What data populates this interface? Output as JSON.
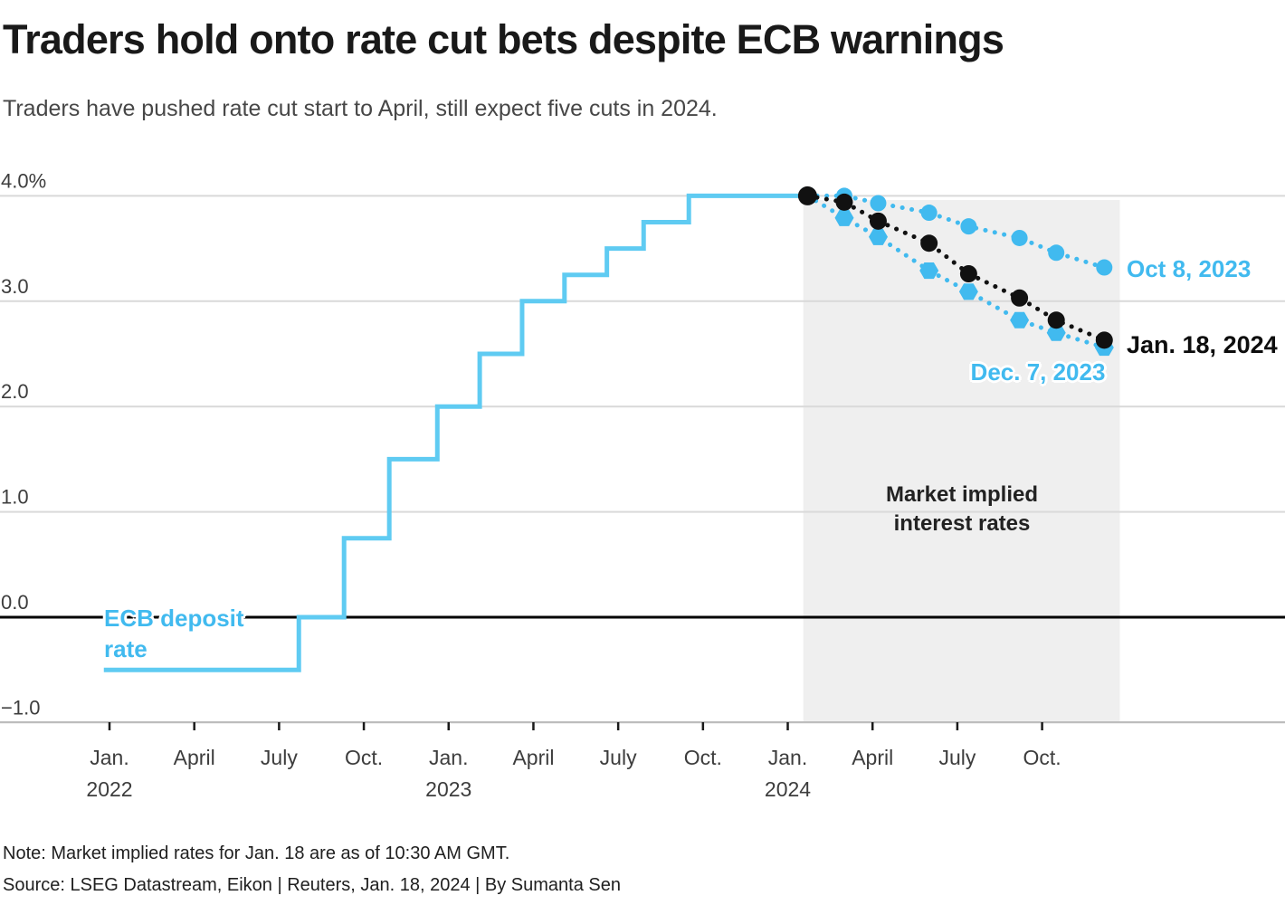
{
  "chart_data": {
    "type": "line",
    "title": "Traders hold onto rate cut bets despite ECB warnings",
    "subtitle": "Traders have pushed rate cut start to April, still expect five cuts in 2024.",
    "note": "Note: Market implied rates for Jan. 18 are as of 10:30 AM GMT.",
    "source": "Source: LSEG Datastream, Eikon | Reuters, Jan. 18, 2024 | By Sumanta Sen",
    "unit": "%",
    "colors": {
      "blue": "#41BAEF",
      "solid_blue": "#5FCBF2",
      "black": "#111111",
      "grid": "#d9d9d9",
      "axis_line": "#bdbdbd",
      "tick_mark": "#1a1a1a",
      "tick_text": "#3d3d3d",
      "shade": "#efefef"
    },
    "y_axis": {
      "label_suffix_top": "%",
      "range": [
        -1.0,
        4.0
      ],
      "grid": true,
      "ticks": [
        {
          "value": 4.0,
          "label": "4.0%"
        },
        {
          "value": 3.0,
          "label": "3.0"
        },
        {
          "value": 2.0,
          "label": "2.0"
        },
        {
          "value": 1.0,
          "label": "1.0"
        },
        {
          "value": 0.0,
          "label": "0.0"
        },
        {
          "value": -1.0,
          "label": "−1.0"
        }
      ],
      "zero_line_value": 0.0
    },
    "x_axis": {
      "unit": "months since Jan 2022",
      "range_months": [
        -0.5,
        41.5
      ],
      "ticks": [
        {
          "month": 0,
          "label": "Jan.",
          "year": "2022"
        },
        {
          "month": 3,
          "label": "April",
          "year": ""
        },
        {
          "month": 6,
          "label": "July",
          "year": ""
        },
        {
          "month": 9,
          "label": "Oct.",
          "year": ""
        },
        {
          "month": 12,
          "label": "Jan.",
          "year": "2023"
        },
        {
          "month": 15,
          "label": "April",
          "year": ""
        },
        {
          "month": 18,
          "label": "July",
          "year": ""
        },
        {
          "month": 21,
          "label": "Oct.",
          "year": ""
        },
        {
          "month": 24,
          "label": "Jan.",
          "year": "2024"
        },
        {
          "month": 27,
          "label": "April",
          "year": ""
        },
        {
          "month": 30,
          "label": "July",
          "year": ""
        },
        {
          "month": 33,
          "label": "Oct.",
          "year": ""
        }
      ]
    },
    "ecb_deposit_rate": {
      "label_line1": "ECB deposit",
      "label_line2": "rate",
      "steps": [
        {
          "month": -0.2,
          "rate": -0.5
        },
        {
          "month": 6.7,
          "rate": 0.0
        },
        {
          "month": 8.3,
          "rate": 0.75
        },
        {
          "month": 9.9,
          "rate": 1.5
        },
        {
          "month": 11.6,
          "rate": 2.0
        },
        {
          "month": 13.1,
          "rate": 2.5
        },
        {
          "month": 14.6,
          "rate": 3.0
        },
        {
          "month": 16.1,
          "rate": 3.25
        },
        {
          "month": 17.6,
          "rate": 3.5
        },
        {
          "month": 18.9,
          "rate": 3.75
        },
        {
          "month": 20.5,
          "rate": 4.0
        },
        {
          "month": 24.7,
          "rate": 4.0
        }
      ]
    },
    "implied_region": {
      "start_month": 24.55,
      "end_month": 35.75,
      "label_line1": "Market implied",
      "label_line2": "interest rates"
    },
    "series_x_months": [
      24.7,
      26.0,
      27.2,
      29.0,
      30.4,
      32.2,
      33.5,
      35.2
    ],
    "series": [
      {
        "name": "Oct 8, 2023",
        "color_key": "blue",
        "marker": "circle",
        "values": [
          4.0,
          4.0,
          3.93,
          3.84,
          3.71,
          3.6,
          3.46,
          3.32
        ]
      },
      {
        "name": "Dec. 7, 2023",
        "color_key": "blue",
        "marker": "hexagon",
        "values": [
          4.0,
          3.79,
          3.61,
          3.29,
          3.09,
          2.82,
          2.7,
          2.56
        ]
      },
      {
        "name": "Jan. 18, 2024",
        "color_key": "black",
        "marker": "circle",
        "values": [
          4.0,
          3.94,
          3.76,
          3.55,
          3.26,
          3.03,
          2.82,
          2.63
        ]
      }
    ]
  }
}
